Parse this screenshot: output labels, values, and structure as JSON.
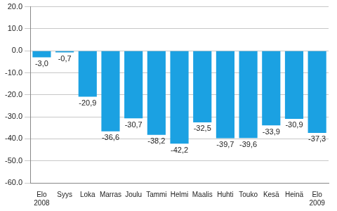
{
  "chart_data": {
    "type": "bar",
    "categories": [
      "Elo\n2008",
      "Syys",
      "Loka",
      "Marras",
      "Joulu",
      "Tammi",
      "Helmi",
      "Maalis",
      "Huhti",
      "Touko",
      "Kesä",
      "Heinä",
      "Elo\n2009"
    ],
    "values": [
      -3.0,
      -0.7,
      -20.9,
      -36.6,
      -30.7,
      -38.2,
      -42.2,
      -32.5,
      -39.7,
      -39.6,
      -33.9,
      -30.9,
      -37.3
    ],
    "value_labels": [
      "-3,0",
      "-0,7",
      "-20,9",
      "-36,6",
      "-30,7",
      "-38,2",
      "-42,2",
      "-32,5",
      "-39,7",
      "-39,6",
      "-33,9",
      "-30,9",
      "-37,3"
    ],
    "color": "#1ba1e2",
    "ylim": [
      -60,
      20
    ],
    "yticks": [
      {
        "value": 20,
        "label": "20.0"
      },
      {
        "value": 10,
        "label": "10.0"
      },
      {
        "value": 0,
        "label": "0.0"
      },
      {
        "value": -10,
        "label": "-10.0"
      },
      {
        "value": -20,
        "label": "-20.0"
      },
      {
        "value": -30,
        "label": "-30.0"
      },
      {
        "value": -40,
        "label": "-40.0"
      },
      {
        "value": -50,
        "label": "-50.0"
      },
      {
        "value": -60,
        "label": "-60.0"
      }
    ],
    "grid": true,
    "data_labels": true
  }
}
